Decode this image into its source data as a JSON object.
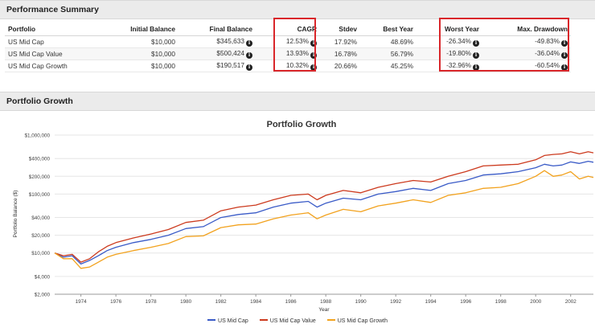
{
  "sections": {
    "summary_title": "Performance Summary",
    "growth_title": "Portfolio Growth"
  },
  "table": {
    "headers": [
      "Portfolio",
      "Initial Balance",
      "Final Balance",
      "CAGR",
      "Stdev",
      "Best Year",
      "Worst Year",
      "Max. Drawdown"
    ],
    "rows": [
      [
        "US Mid Cap",
        "$10,000",
        "$345,633",
        "12.53%",
        "17.92%",
        "48.69%",
        "-26.34%",
        "-49.83%"
      ],
      [
        "US Mid Cap Value",
        "$10,000",
        "$500,424",
        "13.93%",
        "16.78%",
        "56.79%",
        "-19.80%",
        "-36.04%"
      ],
      [
        "US Mid Cap Growth",
        "$10,000",
        "$190,517",
        "10.32%",
        "20.66%",
        "45.25%",
        "-32.96%",
        "-60.54%"
      ]
    ]
  },
  "colors": {
    "highlight": "#d9262a",
    "series": [
      "#3a5bc7",
      "#cc3a1e",
      "#f2a21e"
    ]
  },
  "chart_data": {
    "type": "line",
    "title": "Portfolio Growth",
    "xlabel": "Year",
    "ylabel": "Portfolio Balance ($)",
    "yscale": "log",
    "ylim": [
      2000,
      1000000
    ],
    "xlim": [
      1972.5,
      2003.3
    ],
    "ytick_values": [
      2000,
      4000,
      10000,
      20000,
      40000,
      100000,
      200000,
      400000,
      1000000
    ],
    "ytick_labels": [
      "$2,000",
      "$4,000",
      "$10,000",
      "$20,000",
      "$40,000",
      "$100,000",
      "$200,000",
      "$400,000",
      "$1,000,000"
    ],
    "xtick_values": [
      1974,
      1976,
      1978,
      1980,
      1982,
      1984,
      1986,
      1988,
      1990,
      1992,
      1994,
      1996,
      1998,
      2000,
      2002
    ],
    "xtick_labels": [
      "1974",
      "1976",
      "1978",
      "1980",
      "1982",
      "1984",
      "1986",
      "1988",
      "1990",
      "1992",
      "1994",
      "1996",
      "1998",
      "2000",
      "2002"
    ],
    "x": [
      1972.5,
      1973.0,
      1973.5,
      1974.0,
      1974.5,
      1975.0,
      1975.5,
      1976.0,
      1977.0,
      1978.0,
      1979.0,
      1980.0,
      1981.0,
      1982.0,
      1983.0,
      1984.0,
      1985.0,
      1986.0,
      1987.0,
      1987.5,
      1988.0,
      1989.0,
      1990.0,
      1991.0,
      1992.0,
      1993.0,
      1994.0,
      1995.0,
      1996.0,
      1997.0,
      1998.0,
      1999.0,
      2000.0,
      2000.5,
      2001.0,
      2001.5,
      2002.0,
      2002.5,
      2003.0,
      2003.3
    ],
    "series": [
      {
        "name": "US Mid Cap",
        "values": [
          10000,
          8500,
          9000,
          6500,
          7500,
          9000,
          11000,
          12500,
          15000,
          17000,
          20000,
          26000,
          28000,
          40000,
          45000,
          48000,
          60000,
          70000,
          75000,
          60000,
          70000,
          85000,
          80000,
          100000,
          110000,
          125000,
          115000,
          150000,
          170000,
          210000,
          220000,
          240000,
          280000,
          320000,
          300000,
          310000,
          350000,
          330000,
          360000,
          345633
        ]
      },
      {
        "name": "US Mid Cap Value",
        "values": [
          10000,
          9000,
          9500,
          7000,
          8000,
          10500,
          13000,
          15000,
          18000,
          21000,
          25000,
          33000,
          36000,
          52000,
          60000,
          65000,
          80000,
          95000,
          100000,
          80000,
          95000,
          115000,
          105000,
          130000,
          150000,
          170000,
          160000,
          200000,
          240000,
          300000,
          310000,
          320000,
          380000,
          450000,
          470000,
          480000,
          520000,
          480000,
          520000,
          500424
        ]
      },
      {
        "name": "US Mid Cap Growth",
        "values": [
          10000,
          8000,
          8000,
          5500,
          5800,
          7000,
          8500,
          9500,
          11000,
          12500,
          14500,
          19000,
          19500,
          27000,
          30000,
          31000,
          38000,
          44000,
          48000,
          38000,
          44000,
          55000,
          50000,
          63000,
          70000,
          80000,
          72000,
          95000,
          105000,
          125000,
          130000,
          150000,
          200000,
          250000,
          200000,
          210000,
          240000,
          180000,
          200000,
          190517
        ]
      }
    ]
  }
}
